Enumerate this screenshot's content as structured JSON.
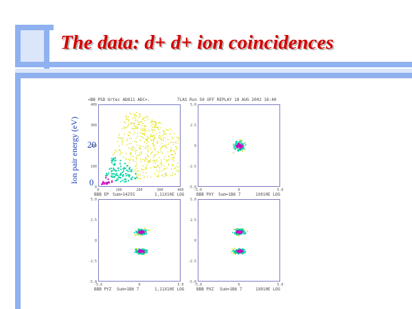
{
  "slide": {
    "title": "The data: d+ d+ ion coincidences",
    "y_axis_label": "Ion pair energy (eV)",
    "y_ticks": [
      "20",
      "0"
    ]
  },
  "plot_header": {
    "left": "<BB PSD Ortec AD811 ADC>.",
    "right": "TLAS Run 50 OFF REPLAY   18 AUG 2002 18:40"
  },
  "panels": [
    {
      "id": "top-left",
      "footer_left": "BBB EP",
      "footer_mid": "Sum=14255",
      "footer_right": "1,11X10E  LOG",
      "xticks": [
        "0",
        "100",
        "200",
        "300",
        "400"
      ],
      "yticks": [
        "400",
        "300",
        "200",
        "100",
        "0"
      ]
    },
    {
      "id": "top-right",
      "footer_left": "BBB PXY",
      "footer_mid": "Sum=1B6 7",
      "footer_right": "1X010E  LOG",
      "xticks": [
        "-5.0",
        "0",
        "5.0"
      ],
      "yticks": [
        "5.0",
        "2.5",
        "0",
        "-2.5",
        "-5.0"
      ]
    },
    {
      "id": "bottom-left",
      "footer_left": "BBB PYZ",
      "footer_mid": "Sum=1B6 7",
      "footer_right": "1,11X10E  LOG",
      "xticks": [
        "-5.0",
        "0",
        "5.0"
      ],
      "yticks": [
        "5.0",
        "2.5",
        "0",
        "-2.5",
        "-5.0"
      ]
    },
    {
      "id": "bottom-right",
      "footer_left": "BBB PXZ",
      "footer_mid": "Sum=1B6 7",
      "footer_right": "1X010E  LOG",
      "xticks": [
        "-5.0",
        "0",
        "5.0"
      ],
      "yticks": [
        "5.0",
        "2.5",
        "0",
        "-2.5",
        "-5.0"
      ]
    }
  ],
  "colors": {
    "title": "#d40000",
    "accent_bar": "#8fb1f0",
    "label": "#1a3fb4",
    "density_high": "#d000c0",
    "density_mid": "#00d0a0",
    "density_low": "#e0e000"
  }
}
